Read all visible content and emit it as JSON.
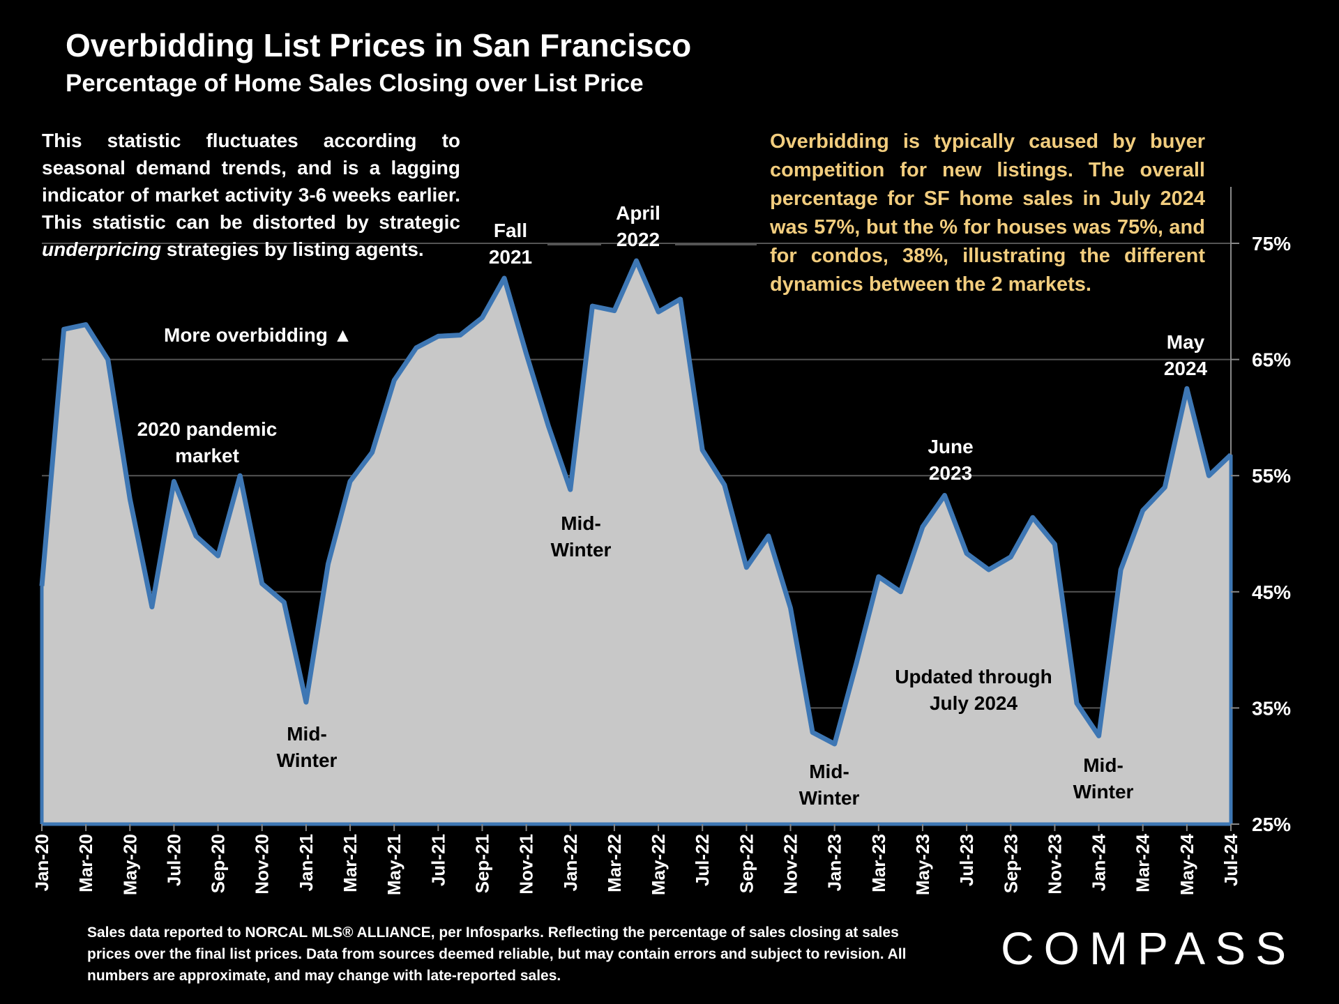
{
  "title": "Overbidding List Prices in San Francisco",
  "subtitle": "Percentage of Home Sales Closing over List Price",
  "note_left_pre": "This statistic fluctuates according to seasonal demand trends, and is a lagging indicator of market activity 3-6 weeks earlier. This statistic can be distorted by strategic ",
  "note_left_em": "underpricing",
  "note_left_post": " strategies by listing agents.",
  "note_right": "Overbidding is typically caused by buyer competition for new listings. The overall percentage for SF home sales in July 2024 was 57%, but the % for houses was 75%, and for condos, 38%, illustrating the different dynamics between the 2 markets.",
  "footer": "Sales data reported to NORCAL MLS® ALLIANCE, per Infosparks. Reflecting the percentage of sales closing at sales prices over the final list prices. Data from sources deemed reliable, but may contain errors and subject to revision. All numbers are approximate, and may change with late-reported sales.",
  "logo": "COMPASS",
  "colors": {
    "line": "#3e77b4",
    "fill": "#c8c8c8",
    "note_right": "#f2cd7e",
    "grid": "#555555"
  },
  "chart_data": {
    "type": "area",
    "title": "Overbidding List Prices in San Francisco",
    "subtitle": "Percentage of Home Sales Closing over List Price",
    "ylabel": "",
    "xlabel": "",
    "ylim": [
      25,
      80
    ],
    "yticks": [
      25,
      35,
      45,
      55,
      65,
      75
    ],
    "ytick_labels": [
      "25%",
      "35%",
      "45%",
      "55%",
      "65%",
      "75%"
    ],
    "x": [
      "Jan-20",
      "Feb-20",
      "Mar-20",
      "Apr-20",
      "May-20",
      "Jun-20",
      "Jul-20",
      "Aug-20",
      "Sep-20",
      "Oct-20",
      "Nov-20",
      "Dec-20",
      "Jan-21",
      "Feb-21",
      "Mar-21",
      "Apr-21",
      "May-21",
      "Jun-21",
      "Jul-21",
      "Aug-21",
      "Sep-21",
      "Oct-21",
      "Nov-21",
      "Dec-21",
      "Jan-22",
      "Feb-22",
      "Mar-22",
      "Apr-22",
      "May-22",
      "Jun-22",
      "Jul-22",
      "Aug-22",
      "Sep-22",
      "Oct-22",
      "Nov-22",
      "Dec-22",
      "Jan-23",
      "Feb-23",
      "Mar-23",
      "Apr-23",
      "May-23",
      "Jun-23",
      "Jul-23",
      "Aug-23",
      "Sep-23",
      "Oct-23",
      "Nov-23",
      "Dec-23",
      "Jan-24",
      "Feb-24",
      "Mar-24",
      "Apr-24",
      "May-24",
      "Jun-24",
      "Jul-24"
    ],
    "xtick_labels": [
      "Jan-20",
      "Mar-20",
      "May-20",
      "Jul-20",
      "Sep-20",
      "Nov-20",
      "Jan-21",
      "Mar-21",
      "May-21",
      "Jul-21",
      "Sep-21",
      "Nov-21",
      "Jan-22",
      "Mar-22",
      "May-22",
      "Jul-22",
      "Sep-22",
      "Nov-22",
      "Jan-23",
      "Mar-23",
      "May-23",
      "Jul-23",
      "Sep-23",
      "Nov-23",
      "Jan-24",
      "Mar-24",
      "May-24",
      "Jul-24"
    ],
    "values": [
      45.5,
      67.6,
      68.0,
      65.0,
      53.0,
      43.7,
      54.5,
      49.8,
      48.1,
      55.0,
      45.7,
      44.1,
      35.5,
      47.4,
      54.5,
      57.0,
      63.2,
      66.0,
      67.0,
      67.1,
      68.6,
      72.0,
      65.5,
      59.3,
      53.8,
      69.6,
      69.2,
      73.5,
      69.1,
      70.2,
      57.2,
      54.2,
      47.1,
      49.8,
      43.6,
      32.9,
      31.9,
      38.9,
      46.3,
      45.0,
      50.6,
      53.3,
      48.3,
      46.9,
      48.0,
      51.4,
      49.1,
      35.4,
      32.6,
      46.9,
      52.0,
      54.0,
      62.5,
      55.0,
      56.8
    ],
    "annotations": [
      {
        "id": "more-overbidding",
        "text": "More overbidding ▲"
      },
      {
        "id": "pandemic",
        "lines": [
          "2020 pandemic",
          "market"
        ]
      },
      {
        "id": "fall-2021",
        "lines": [
          "Fall",
          "2021"
        ]
      },
      {
        "id": "april-2022",
        "lines": [
          "April",
          "2022"
        ]
      },
      {
        "id": "june-2023",
        "lines": [
          "June",
          "2023"
        ]
      },
      {
        "id": "may-2024",
        "lines": [
          "May",
          "2024"
        ]
      },
      {
        "id": "midwinter-21",
        "lines": [
          "Mid-",
          "Winter"
        ]
      },
      {
        "id": "midwinter-22",
        "lines": [
          "Mid-",
          "Winter"
        ]
      },
      {
        "id": "midwinter-23",
        "lines": [
          "Mid-",
          "Winter"
        ]
      },
      {
        "id": "midwinter-24",
        "lines": [
          "Mid-",
          "Winter"
        ]
      },
      {
        "id": "updated",
        "lines": [
          "Updated through",
          "July 2024"
        ]
      }
    ]
  }
}
